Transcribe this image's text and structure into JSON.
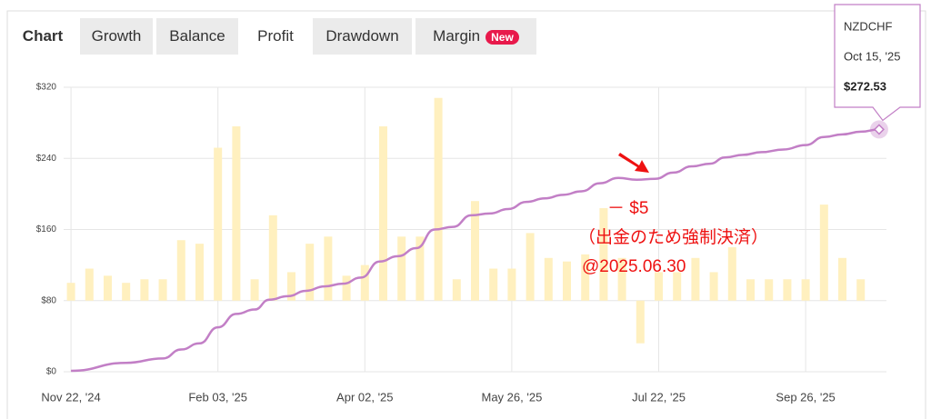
{
  "tabs": [
    "Chart",
    "Growth",
    "Balance",
    "Profit",
    "Drawdown",
    "Margin"
  ],
  "badge": "New",
  "chart_data": {
    "type": "combo",
    "xlim": [
      -2,
      222
    ],
    "xticks": [
      {
        "value": 0,
        "label": "Nov 22, '24"
      },
      {
        "value": 40,
        "label": "Feb 03, '25"
      },
      {
        "value": 80,
        "label": "Apr 02, '25"
      },
      {
        "value": 120,
        "label": "May 26, '25"
      },
      {
        "value": 160,
        "label": "Jul 22, '25"
      },
      {
        "value": 200,
        "label": "Sep 26, '25"
      }
    ],
    "ylim": [
      0,
      320
    ],
    "yticks": [
      {
        "value": 0,
        "label": "$0"
      },
      {
        "value": 80,
        "label": "$80"
      },
      {
        "value": 160,
        "label": "$160"
      },
      {
        "value": 240,
        "label": "$240"
      },
      {
        "value": 320,
        "label": "$320"
      }
    ],
    "y2lim": [
      -20,
      60
    ],
    "grid": true,
    "line": {
      "color": "#c27fc6",
      "x": [
        0,
        15,
        25,
        30,
        35,
        40,
        45,
        50,
        54,
        59,
        64,
        69,
        74,
        79,
        84,
        89,
        94,
        99,
        104,
        109,
        114,
        119,
        124,
        129,
        134,
        139,
        144,
        149,
        154,
        159,
        164,
        169,
        174,
        178,
        183,
        188,
        194,
        200,
        205,
        210,
        215,
        220
      ],
      "values": [
        1,
        10,
        15,
        25,
        32,
        50,
        65,
        70,
        81,
        85,
        91,
        96,
        99,
        106,
        124,
        130,
        139,
        160,
        163,
        176,
        178,
        183,
        191,
        195,
        199,
        203,
        212,
        218,
        216,
        217,
        224,
        231,
        234,
        241,
        244,
        247,
        250,
        255,
        264,
        267,
        270,
        272.53
      ]
    },
    "bars": {
      "color": "#fff0bf",
      "axis": "y2",
      "x": [
        0,
        5,
        10,
        15,
        20,
        25,
        30,
        35,
        40,
        45,
        50,
        55,
        60,
        65,
        70,
        75,
        80,
        85,
        90,
        95,
        100,
        105,
        110,
        115,
        120,
        125,
        130,
        135,
        140,
        145,
        150,
        155,
        160,
        165,
        170,
        175,
        180,
        185,
        190,
        195,
        200,
        205,
        210,
        215
      ],
      "values": [
        5,
        9,
        7,
        5,
        6,
        6,
        17,
        16,
        43,
        49,
        6,
        24,
        8,
        16,
        18,
        7,
        10,
        49,
        18,
        18,
        57,
        6,
        28,
        9,
        9,
        19,
        12,
        11,
        13,
        26,
        12,
        -12,
        8,
        8,
        12,
        8,
        15,
        6,
        6,
        6,
        6,
        27,
        12,
        6
      ]
    },
    "annotations": [
      "－ $5",
      "（出金のため強制決済）",
      "@2025.06.30"
    ],
    "tooltip": {
      "title": "NZDCHF",
      "date": "Oct 15, '25",
      "label": "$272.53"
    }
  }
}
